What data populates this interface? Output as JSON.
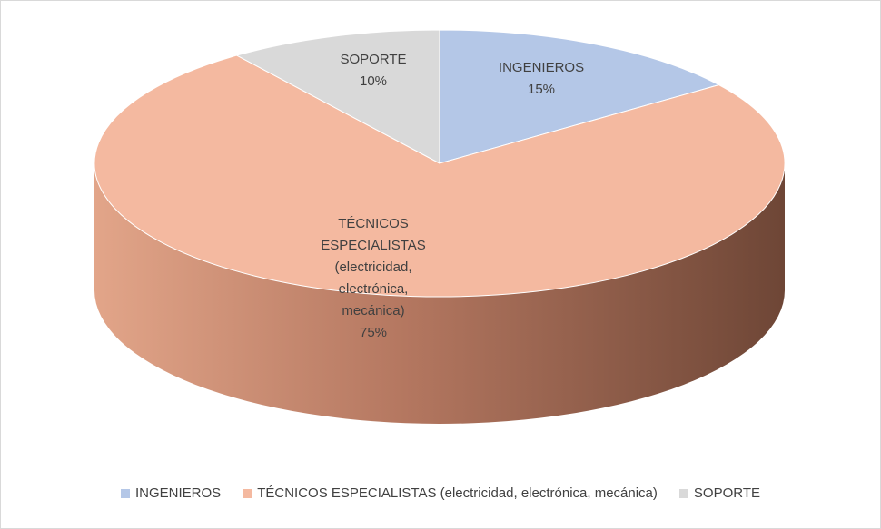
{
  "chart_data": {
    "type": "pie",
    "title": "",
    "categories": [
      "INGENIEROS",
      "TÉCNICOS ESPECIALISTAS (electricidad, electrónica, mecánica)",
      "SOPORTE"
    ],
    "values": [
      15,
      75,
      10
    ],
    "data_labels": [
      {
        "lines": [
          "INGENIEROS",
          "15%"
        ]
      },
      {
        "lines": [
          "TÉCNICOS",
          "ESPECIALISTAS",
          "(electricidad,",
          "electrónica,",
          "mecánica)",
          "75%"
        ]
      },
      {
        "lines": [
          "SOPORTE",
          "10%"
        ]
      }
    ],
    "colors": [
      "#b4c7e7",
      "#f4b9a0",
      "#d9d9d9"
    ],
    "side_colors": [
      "#8fa6c8",
      "#7a4c3a",
      "#a6a6a6"
    ],
    "style": "3d",
    "legend": "bottom"
  },
  "legend": {
    "items": [
      {
        "label": "INGENIEROS",
        "color": "#b4c7e7"
      },
      {
        "label": "TÉCNICOS ESPECIALISTAS (electricidad, electrónica, mecánica)",
        "color": "#f4b9a0"
      },
      {
        "label": "SOPORTE",
        "color": "#d9d9d9"
      }
    ]
  }
}
